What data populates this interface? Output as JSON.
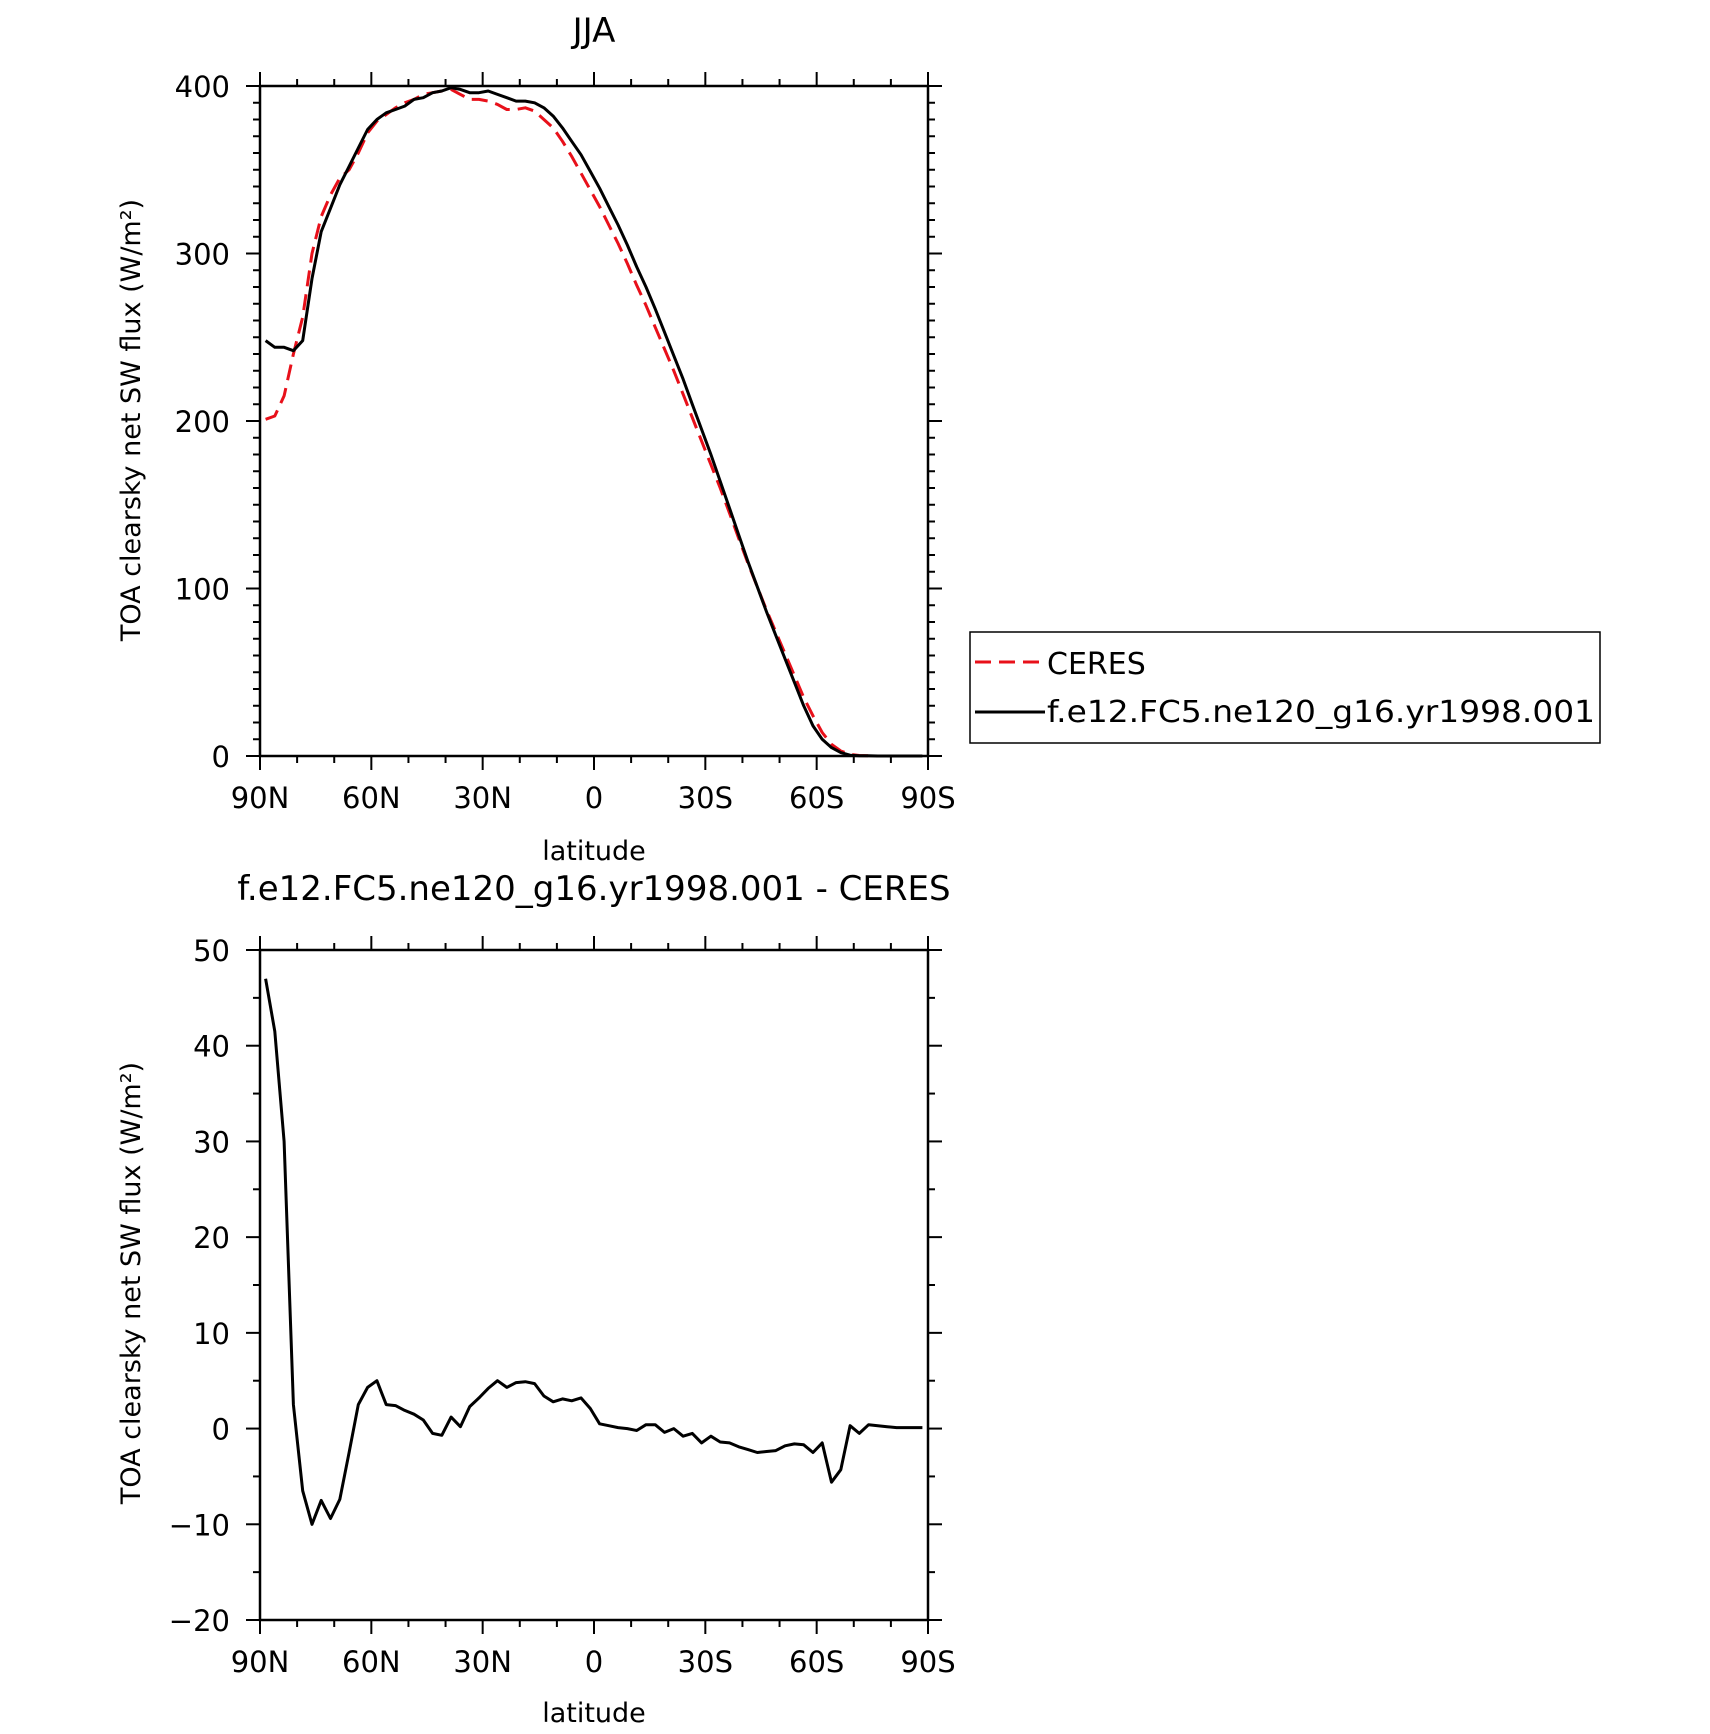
{
  "chart_data": [
    {
      "type": "line",
      "title": "JJA",
      "xlabel": "latitude",
      "ylabel": "TOA clearsky net SW flux (W/m²)",
      "xlim": [
        90,
        -90
      ],
      "ylim": [
        0,
        400
      ],
      "x_ticks": [
        90,
        60,
        30,
        0,
        -30,
        -60,
        -90
      ],
      "x_tick_labels": [
        "90N",
        "60N",
        "30N",
        "0",
        "30S",
        "60S",
        "90S"
      ],
      "y_ticks": [
        0,
        100,
        200,
        300,
        400
      ],
      "y_tick_labels": [
        "0",
        "100",
        "200",
        "300",
        "400"
      ],
      "legend_position": "right",
      "series": [
        {
          "name": "CERES",
          "color": "#e8101a",
          "dash": "dashed",
          "x": [
            88.5,
            86,
            83.5,
            81,
            78.5,
            76,
            73.5,
            71,
            68.5,
            66,
            63.5,
            61,
            58.5,
            56,
            53.5,
            51,
            48.5,
            46,
            43.5,
            41,
            38.5,
            36,
            33.5,
            31,
            28.5,
            26,
            23.5,
            21,
            18.5,
            16,
            13.5,
            11,
            8.5,
            6,
            3.5,
            1,
            -1.5,
            -4,
            -6.5,
            -9,
            -11.5,
            -14,
            -16.5,
            -19,
            -21.5,
            -24,
            -26.5,
            -29,
            -31.5,
            -34,
            -36.5,
            -39,
            -41.5,
            -44,
            -46.5,
            -49,
            -51.5,
            -54,
            -56.5,
            -59,
            -61.5,
            -64,
            -66.5,
            -69,
            -71.5,
            -74,
            -76.5,
            -79,
            -81.5,
            -84,
            -86.5,
            -88.5
          ],
          "y": [
            201,
            203,
            215,
            240,
            262,
            300,
            322,
            335,
            345,
            350,
            360,
            372,
            379,
            383,
            387,
            390,
            392,
            395,
            396,
            397,
            398,
            395,
            392,
            392,
            391,
            389,
            386,
            386,
            387,
            385,
            380,
            375,
            367,
            358,
            348,
            338,
            328,
            317,
            306,
            294,
            281,
            269,
            256,
            243,
            230,
            216,
            202,
            188,
            174,
            160,
            145,
            130,
            115,
            101,
            87,
            74,
            61,
            48,
            35,
            24,
            14,
            7,
            3,
            1,
            0.3,
            0.1,
            0,
            0,
            0,
            0,
            0,
            0
          ]
        },
        {
          "name": "f.e12.FC5.ne120_g16.yr1998.001",
          "color": "#000000",
          "dash": "solid",
          "x": [
            88.5,
            86,
            83.5,
            81,
            78.5,
            76,
            73.5,
            71,
            68.5,
            66,
            63.5,
            61,
            58.5,
            56,
            53.5,
            51,
            48.5,
            46,
            43.5,
            41,
            38.5,
            36,
            33.5,
            31,
            28.5,
            26,
            23.5,
            21,
            18.5,
            16,
            13.5,
            11,
            8.5,
            6,
            3.5,
            1,
            -1.5,
            -4,
            -6.5,
            -9,
            -11.5,
            -14,
            -16.5,
            -19,
            -21.5,
            -24,
            -26.5,
            -29,
            -31.5,
            -34,
            -36.5,
            -39,
            -41.5,
            -44,
            -46.5,
            -49,
            -51.5,
            -54,
            -56.5,
            -59,
            -61.5,
            -64,
            -66.5,
            -69,
            -71.5,
            -74,
            -76.5,
            -79,
            -81.5,
            -84,
            -86.5,
            -88.5
          ],
          "y": [
            248,
            244,
            244,
            242,
            248,
            285,
            313,
            327,
            341,
            352,
            363,
            374,
            380,
            384,
            386,
            388,
            392,
            393,
            396,
            397,
            399,
            398,
            396,
            396,
            397,
            395,
            393,
            391,
            391,
            390,
            387,
            382,
            375,
            367,
            359,
            349,
            339,
            328,
            317,
            305,
            292,
            280,
            267,
            253,
            239,
            225,
            210,
            195,
            180,
            164,
            148,
            132,
            116,
            101,
            86,
            72,
            58,
            44,
            30,
            18,
            10,
            5,
            2,
            0.5,
            0.2,
            0.1,
            0,
            0,
            0,
            0,
            0,
            0
          ]
        }
      ]
    },
    {
      "type": "line",
      "title": "f.e12.FC5.ne120_g16.yr1998.001 - CERES",
      "xlabel": "latitude",
      "ylabel": "TOA clearsky net SW flux (W/m²)",
      "xlim": [
        90,
        -90
      ],
      "ylim": [
        -20,
        50
      ],
      "x_ticks": [
        90,
        60,
        30,
        0,
        -30,
        -60,
        -90
      ],
      "x_tick_labels": [
        "90N",
        "60N",
        "30N",
        "0",
        "30S",
        "60S",
        "90S"
      ],
      "y_ticks": [
        -20,
        -10,
        0,
        10,
        20,
        30,
        40,
        50
      ],
      "y_tick_labels": [
        "−20",
        "−10",
        "0",
        "10",
        "20",
        "30",
        "40",
        "50"
      ],
      "series": [
        {
          "color": "#000000",
          "dash": "solid",
          "x": [
            88.5,
            86,
            83.5,
            81,
            78.5,
            76,
            73.5,
            71,
            68.5,
            66,
            63.5,
            61,
            58.5,
            56,
            53.5,
            51,
            48.5,
            46,
            43.5,
            41,
            38.5,
            36,
            33.5,
            31,
            28.5,
            26,
            23.5,
            21,
            18.5,
            16,
            13.5,
            11,
            8.5,
            6,
            3.5,
            1,
            -1.5,
            -4,
            -6.5,
            -9,
            -11.5,
            -14,
            -16.5,
            -19,
            -21.5,
            -24,
            -26.5,
            -29,
            -31.5,
            -34,
            -36.5,
            -39,
            -41.5,
            -44,
            -46.5,
            -49,
            -51.5,
            -54,
            -56.5,
            -59,
            -61.5,
            -64,
            -66.5,
            -69,
            -71.5,
            -74,
            -76.5,
            -79,
            -81.5,
            -84,
            -86.5,
            -88.5
          ],
          "y": [
            47,
            41.5,
            30,
            2.5,
            -6.5,
            -10,
            -7.5,
            -9.4,
            -7.4,
            -2.5,
            2.5,
            4.3,
            5,
            2.5,
            2.4,
            1.9,
            1.5,
            0.9,
            -0.5,
            -0.7,
            1.2,
            0.2,
            2.3,
            3.2,
            4.2,
            5,
            4.3,
            4.8,
            4.9,
            4.7,
            3.4,
            2.8,
            3.1,
            2.9,
            3.2,
            2.1,
            0.5,
            0.3,
            0.1,
            0,
            -0.2,
            0.4,
            0.4,
            -0.4,
            0,
            -0.8,
            -0.5,
            -1.5,
            -0.8,
            -1.4,
            -1.5,
            -1.9,
            -2.2,
            -2.5,
            -2.4,
            -2.3,
            -1.8,
            -1.6,
            -1.7,
            -2.5,
            -1.5,
            -5.6,
            -4.3,
            0.3,
            -0.5,
            0.4,
            0.3,
            0.2,
            0.1,
            0.1,
            0.1,
            0.1
          ]
        }
      ]
    }
  ]
}
